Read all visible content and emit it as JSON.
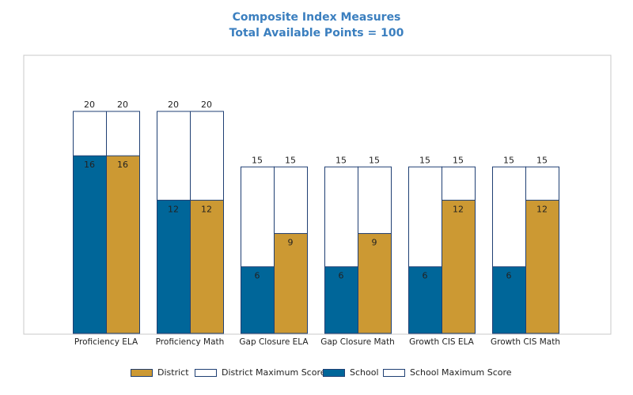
{
  "title_line1": "Composite Index Measures",
  "title_line2": "Total Available Points = 100",
  "colors": {
    "school": "#006699",
    "district": "#cc9933",
    "max": "#ffffff",
    "outline": "#1f3f73",
    "title": "#3b7fbf"
  },
  "legend": [
    {
      "label": "District",
      "swatch": "district"
    },
    {
      "label": "District Maximum Score",
      "swatch": "max"
    },
    {
      "label": "School",
      "swatch": "school"
    },
    {
      "label": "School Maximum Score",
      "swatch": "max"
    }
  ],
  "chart_data": {
    "type": "bar",
    "title": "Composite Index Measures",
    "subtitle": "Total Available Points = 100",
    "categories": [
      "Proficiency ELA",
      "Proficiency Math",
      "Gap Closure ELA",
      "Gap Closure Math",
      "Growth CIS ELA",
      "Growth CIS Math"
    ],
    "series": [
      {
        "name": "School",
        "values": [
          16,
          12,
          6,
          6,
          6,
          6
        ]
      },
      {
        "name": "School Maximum Score",
        "values": [
          20,
          20,
          15,
          15,
          15,
          15
        ]
      },
      {
        "name": "District",
        "values": [
          16,
          12,
          9,
          9,
          12,
          12
        ]
      },
      {
        "name": "District Maximum Score",
        "values": [
          20,
          20,
          15,
          15,
          15,
          15
        ]
      }
    ],
    "ylim": [
      0,
      25
    ],
    "grid": false,
    "legend_position": "bottom"
  }
}
